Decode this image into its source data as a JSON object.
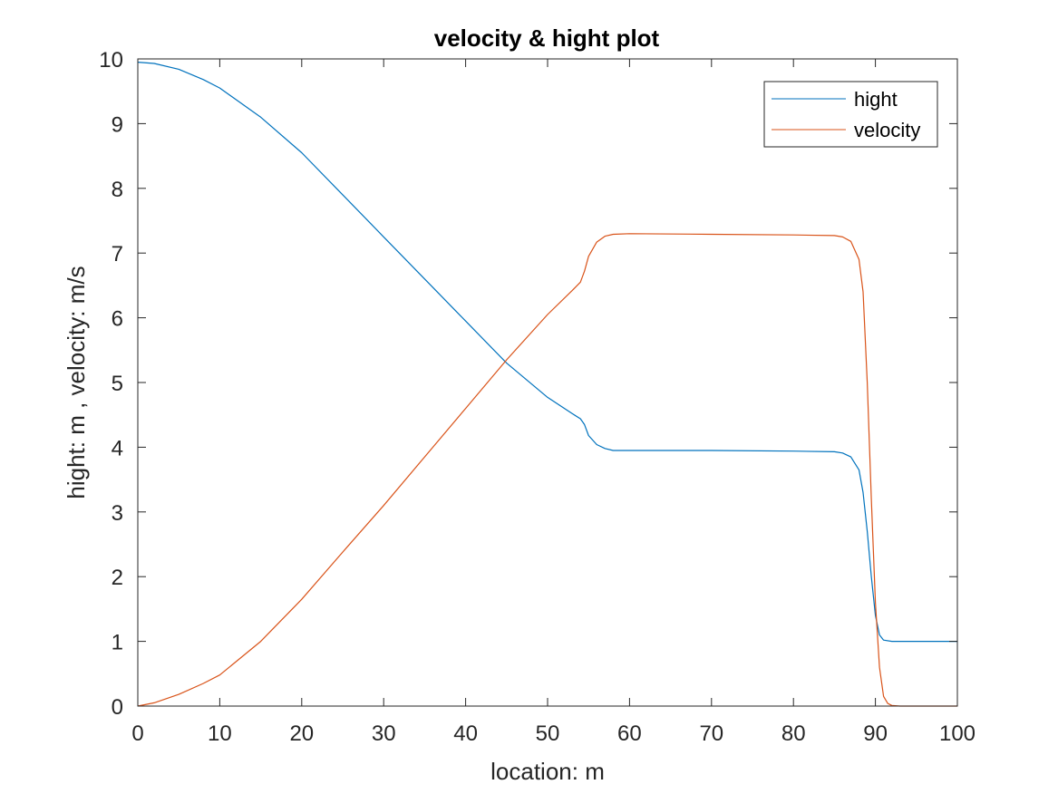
{
  "chart_data": {
    "type": "line",
    "title": "velocity & hight plot",
    "xlabel": "location: m",
    "ylabel": "hight: m , velocity: m/s",
    "xlim": [
      0,
      100
    ],
    "ylim": [
      0,
      10
    ],
    "xticks": [
      "0",
      "10",
      "20",
      "30",
      "40",
      "50",
      "60",
      "70",
      "80",
      "90",
      "100"
    ],
    "yticks": [
      "0",
      "1",
      "2",
      "3",
      "4",
      "5",
      "6",
      "7",
      "8",
      "9",
      "10"
    ],
    "grid": false,
    "legend_position": "top-right",
    "series": [
      {
        "name": "hight",
        "color": "#0072BD",
        "x": [
          0,
          2,
          5,
          8,
          10,
          15,
          20,
          25,
          30,
          35,
          40,
          45,
          50,
          53,
          54,
          54.5,
          55,
          56,
          57,
          58,
          60,
          70,
          80,
          85,
          86,
          87,
          88,
          88.5,
          89,
          89.5,
          90,
          90.5,
          91,
          92,
          95,
          100
        ],
        "y": [
          9.95,
          9.93,
          9.84,
          9.68,
          9.55,
          9.1,
          8.55,
          7.9,
          7.25,
          6.6,
          5.95,
          5.3,
          4.77,
          4.52,
          4.44,
          4.35,
          4.18,
          4.04,
          3.98,
          3.95,
          3.95,
          3.95,
          3.94,
          3.93,
          3.91,
          3.85,
          3.65,
          3.3,
          2.7,
          2.0,
          1.4,
          1.1,
          1.02,
          1.0,
          1.0,
          1.0
        ]
      },
      {
        "name": "velocity",
        "color": "#D95319",
        "x": [
          0,
          2,
          5,
          8,
          10,
          15,
          20,
          25,
          30,
          35,
          40,
          45,
          50,
          53,
          54,
          54.5,
          55,
          56,
          57,
          58,
          60,
          70,
          80,
          85,
          86,
          87,
          88,
          88.5,
          89,
          89.5,
          90,
          90.5,
          91,
          91.5,
          92,
          93,
          100
        ],
        "y": [
          0.0,
          0.05,
          0.18,
          0.35,
          0.48,
          1.0,
          1.65,
          2.38,
          3.1,
          3.85,
          4.6,
          5.35,
          6.05,
          6.42,
          6.55,
          6.72,
          6.95,
          7.17,
          7.26,
          7.29,
          7.3,
          7.29,
          7.28,
          7.27,
          7.25,
          7.18,
          6.9,
          6.4,
          5.0,
          3.2,
          1.6,
          0.6,
          0.15,
          0.04,
          0.01,
          0.0,
          0.0
        ]
      }
    ]
  }
}
